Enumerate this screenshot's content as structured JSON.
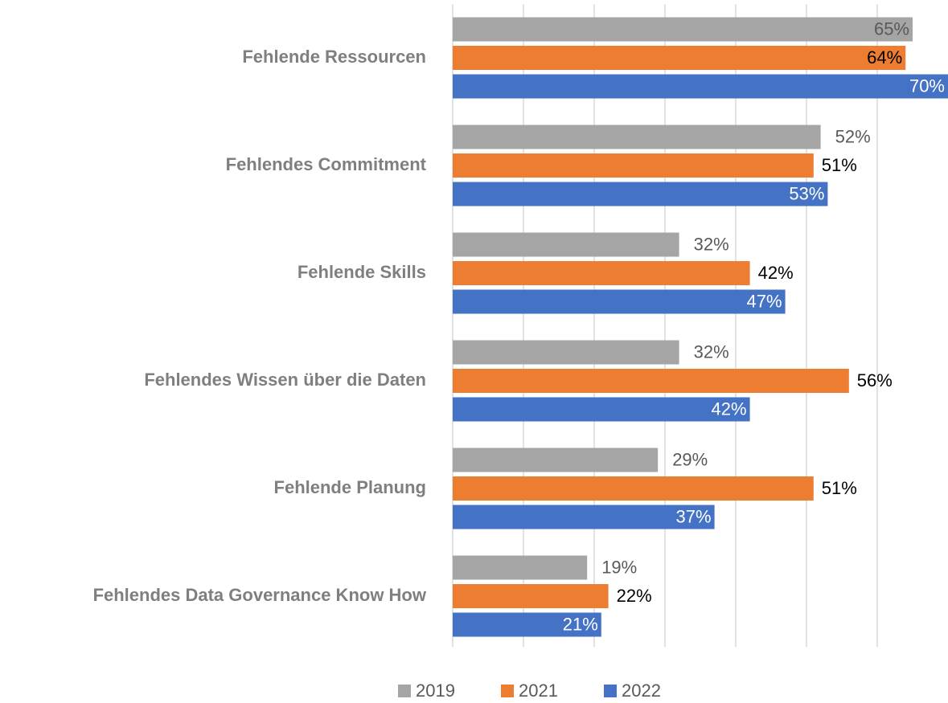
{
  "chart_data": {
    "type": "hbar",
    "categories": [
      "Fehlende Ressourcen",
      "Fehlendes Commitment",
      "Fehlende Skills",
      "Fehlendes Wissen über die Daten",
      "Fehlende Planung",
      "Fehlendes Data Governance Know How"
    ],
    "series": [
      {
        "name": "2019",
        "color": "#a5a5a5",
        "values": [
          65,
          52,
          32,
          32,
          29,
          19
        ],
        "value_labels": [
          "65%",
          "52%",
          "32%",
          "32%",
          "29%",
          "19%"
        ]
      },
      {
        "name": "2021",
        "color": "#ed7d31",
        "values": [
          64,
          51,
          42,
          56,
          51,
          22
        ],
        "value_labels": [
          "64%",
          "51%",
          "42%",
          "56%",
          "51%",
          "22%"
        ]
      },
      {
        "name": "2022",
        "color": "#4472c4",
        "values": [
          70,
          53,
          47,
          42,
          37,
          21
        ],
        "value_labels": [
          "70%",
          "53%",
          "47%",
          "42%",
          "37%",
          "21%"
        ]
      }
    ],
    "xlim": [
      0,
      70
    ],
    "xticks": [
      0,
      10,
      20,
      30,
      40,
      50,
      60
    ],
    "grid": true,
    "legend": "bottom"
  }
}
